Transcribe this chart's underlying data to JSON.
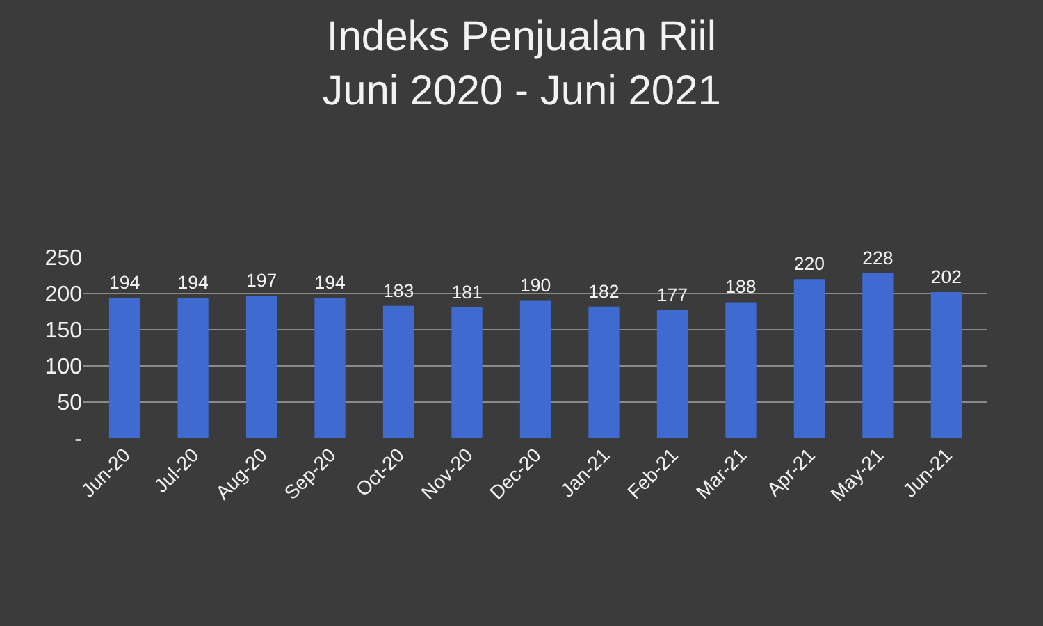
{
  "chart_data": {
    "type": "bar",
    "title": "Indeks Penjualan Riil\nJuni 2020 - Juni 2021",
    "categories": [
      "Jun-20",
      "Jul-20",
      "Aug-20",
      "Sep-20",
      "Oct-20",
      "Nov-20",
      "Dec-20",
      "Jan-21",
      "Feb-21",
      "Mar-21",
      "Apr-21",
      "May-21",
      "Jun-21"
    ],
    "values": [
      194,
      194,
      197,
      194,
      183,
      181,
      190,
      182,
      177,
      188,
      220,
      228,
      202
    ],
    "color": "#3f6ad0",
    "ylim": [
      0,
      250
    ],
    "yticks": [
      {
        "value": 0,
        "label": "-"
      },
      50,
      100,
      150,
      200,
      250
    ],
    "grid": "y",
    "data_labels": true,
    "legend": false
  }
}
